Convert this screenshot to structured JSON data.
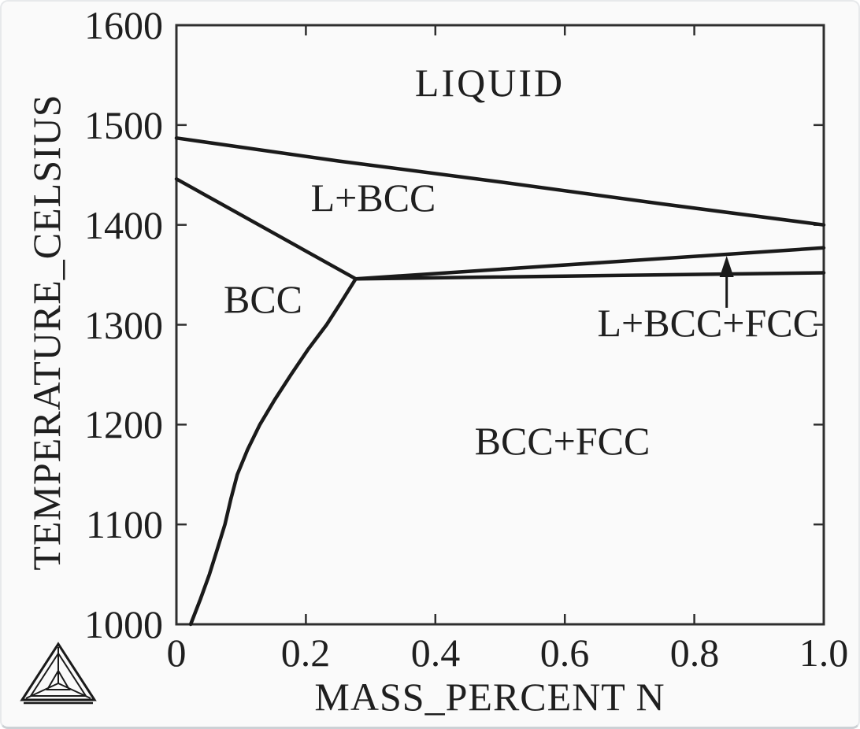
{
  "colors": {
    "background": "#fafafa",
    "line": "#1a1a1a",
    "frame": "#2e2e2e",
    "text": "#1f1f1f"
  },
  "icons": {
    "logo": "thermocalc-triangle"
  },
  "chart_data": {
    "type": "line",
    "subtype": "binary-phase-diagram",
    "title": "",
    "xlabel": "MASS_PERCENT N",
    "ylabel": "TEMPERATURE_CELSIUS",
    "xlim": [
      0,
      1.0
    ],
    "ylim": [
      1000,
      1600
    ],
    "grid": false,
    "legend": "none",
    "xticks": {
      "values": [
        0,
        0.2,
        0.4,
        0.6,
        0.8,
        1.0
      ],
      "labels": [
        "0",
        "0.2",
        "0.4",
        "0.6",
        "0.8",
        "1.0"
      ]
    },
    "yticks": {
      "values": [
        1600,
        1500,
        1400,
        1300,
        1200,
        1100,
        1000
      ],
      "labels": [
        "1600",
        "1500",
        "1400",
        "1300",
        "1200",
        "1100",
        "1000"
      ]
    },
    "series": [
      {
        "name": "liquidus",
        "points": [
          [
            0,
            1487
          ],
          [
            0.25,
            1464
          ],
          [
            0.5,
            1443
          ],
          [
            0.75,
            1421
          ],
          [
            1.0,
            1400
          ]
        ]
      },
      {
        "name": "bcc-solidus",
        "points": [
          [
            0,
            1446
          ],
          [
            0.277,
            1346
          ]
        ]
      },
      {
        "name": "l-bcc-fcc-upper-boundary",
        "points": [
          [
            0.277,
            1346
          ],
          [
            1.0,
            1377
          ]
        ]
      },
      {
        "name": "l-bcc-fcc-lower-boundary",
        "points": [
          [
            0.277,
            1346
          ],
          [
            1.0,
            1352
          ]
        ]
      },
      {
        "name": "bcc-fcc-solvus",
        "points": [
          [
            0.277,
            1346
          ],
          [
            0.252,
            1320
          ],
          [
            0.232,
            1300
          ],
          [
            0.203,
            1275
          ],
          [
            0.177,
            1250
          ],
          [
            0.152,
            1225
          ],
          [
            0.129,
            1200
          ],
          [
            0.11,
            1175
          ],
          [
            0.094,
            1150
          ],
          [
            0.084,
            1125
          ],
          [
            0.075,
            1100
          ],
          [
            0.063,
            1075
          ],
          [
            0.051,
            1050
          ],
          [
            0.037,
            1025
          ],
          [
            0.022,
            1000
          ]
        ]
      }
    ],
    "regions": [
      {
        "id": "liquid",
        "label": "LIQUID"
      },
      {
        "id": "l-bcc",
        "label": "L+BCC"
      },
      {
        "id": "bcc",
        "label": "BCC"
      },
      {
        "id": "bcc-fcc",
        "label": "BCC+FCC"
      },
      {
        "id": "l-bcc-fcc",
        "label": "L+BCC+FCC"
      }
    ],
    "arrow": {
      "x": 0.85,
      "t_tail": 1317,
      "t_tip": 1369
    }
  }
}
